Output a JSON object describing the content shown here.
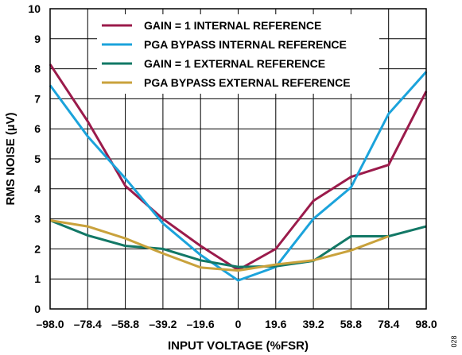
{
  "chart_data": {
    "type": "line",
    "title": "",
    "xlabel": "INPUT VOLTAGE (%FSR)",
    "ylabel": "RMS NOISE (µV)",
    "x": [
      -98.0,
      -78.4,
      -58.8,
      -39.2,
      -19.6,
      0,
      19.6,
      39.2,
      58.8,
      78.4,
      98.0
    ],
    "x_tick_labels": [
      "–98.0",
      "–78.4",
      "–58.8",
      "–39.2",
      "–19.6",
      "0",
      "19.6",
      "39.2",
      "58.8",
      "78.4",
      "98.0"
    ],
    "y_ticks": [
      0,
      1,
      2,
      3,
      4,
      5,
      6,
      7,
      8,
      9,
      10
    ],
    "xlim": [
      -98.0,
      98.0
    ],
    "ylim": [
      0,
      10
    ],
    "grid": true,
    "legend_position": "top",
    "figure_id": "028",
    "series": [
      {
        "name": "GAIN = 1 INTERNAL REFERENCE",
        "color": "#9b1b4b",
        "values": [
          8.15,
          6.25,
          4.1,
          3.0,
          2.1,
          1.3,
          2.0,
          3.6,
          4.4,
          4.8,
          7.25
        ]
      },
      {
        "name": "PGA BYPASS INTERNAL REFERENCE",
        "color": "#1ba3db",
        "values": [
          7.45,
          5.75,
          4.35,
          2.85,
          1.8,
          0.95,
          1.4,
          3.0,
          4.05,
          6.5,
          7.9
        ]
      },
      {
        "name": "GAIN = 1 EXTERNAL REFERENCE",
        "color": "#127866",
        "values": [
          2.95,
          2.45,
          2.1,
          2.0,
          1.62,
          1.4,
          1.42,
          1.6,
          2.42,
          2.42,
          2.75
        ]
      },
      {
        "name": "PGA BYPASS EXTERNAL REFERENCE",
        "color": "#c9a23c",
        "values": [
          2.95,
          2.75,
          2.35,
          1.85,
          1.38,
          1.28,
          1.48,
          1.62,
          1.95,
          2.42,
          null
        ]
      }
    ]
  }
}
